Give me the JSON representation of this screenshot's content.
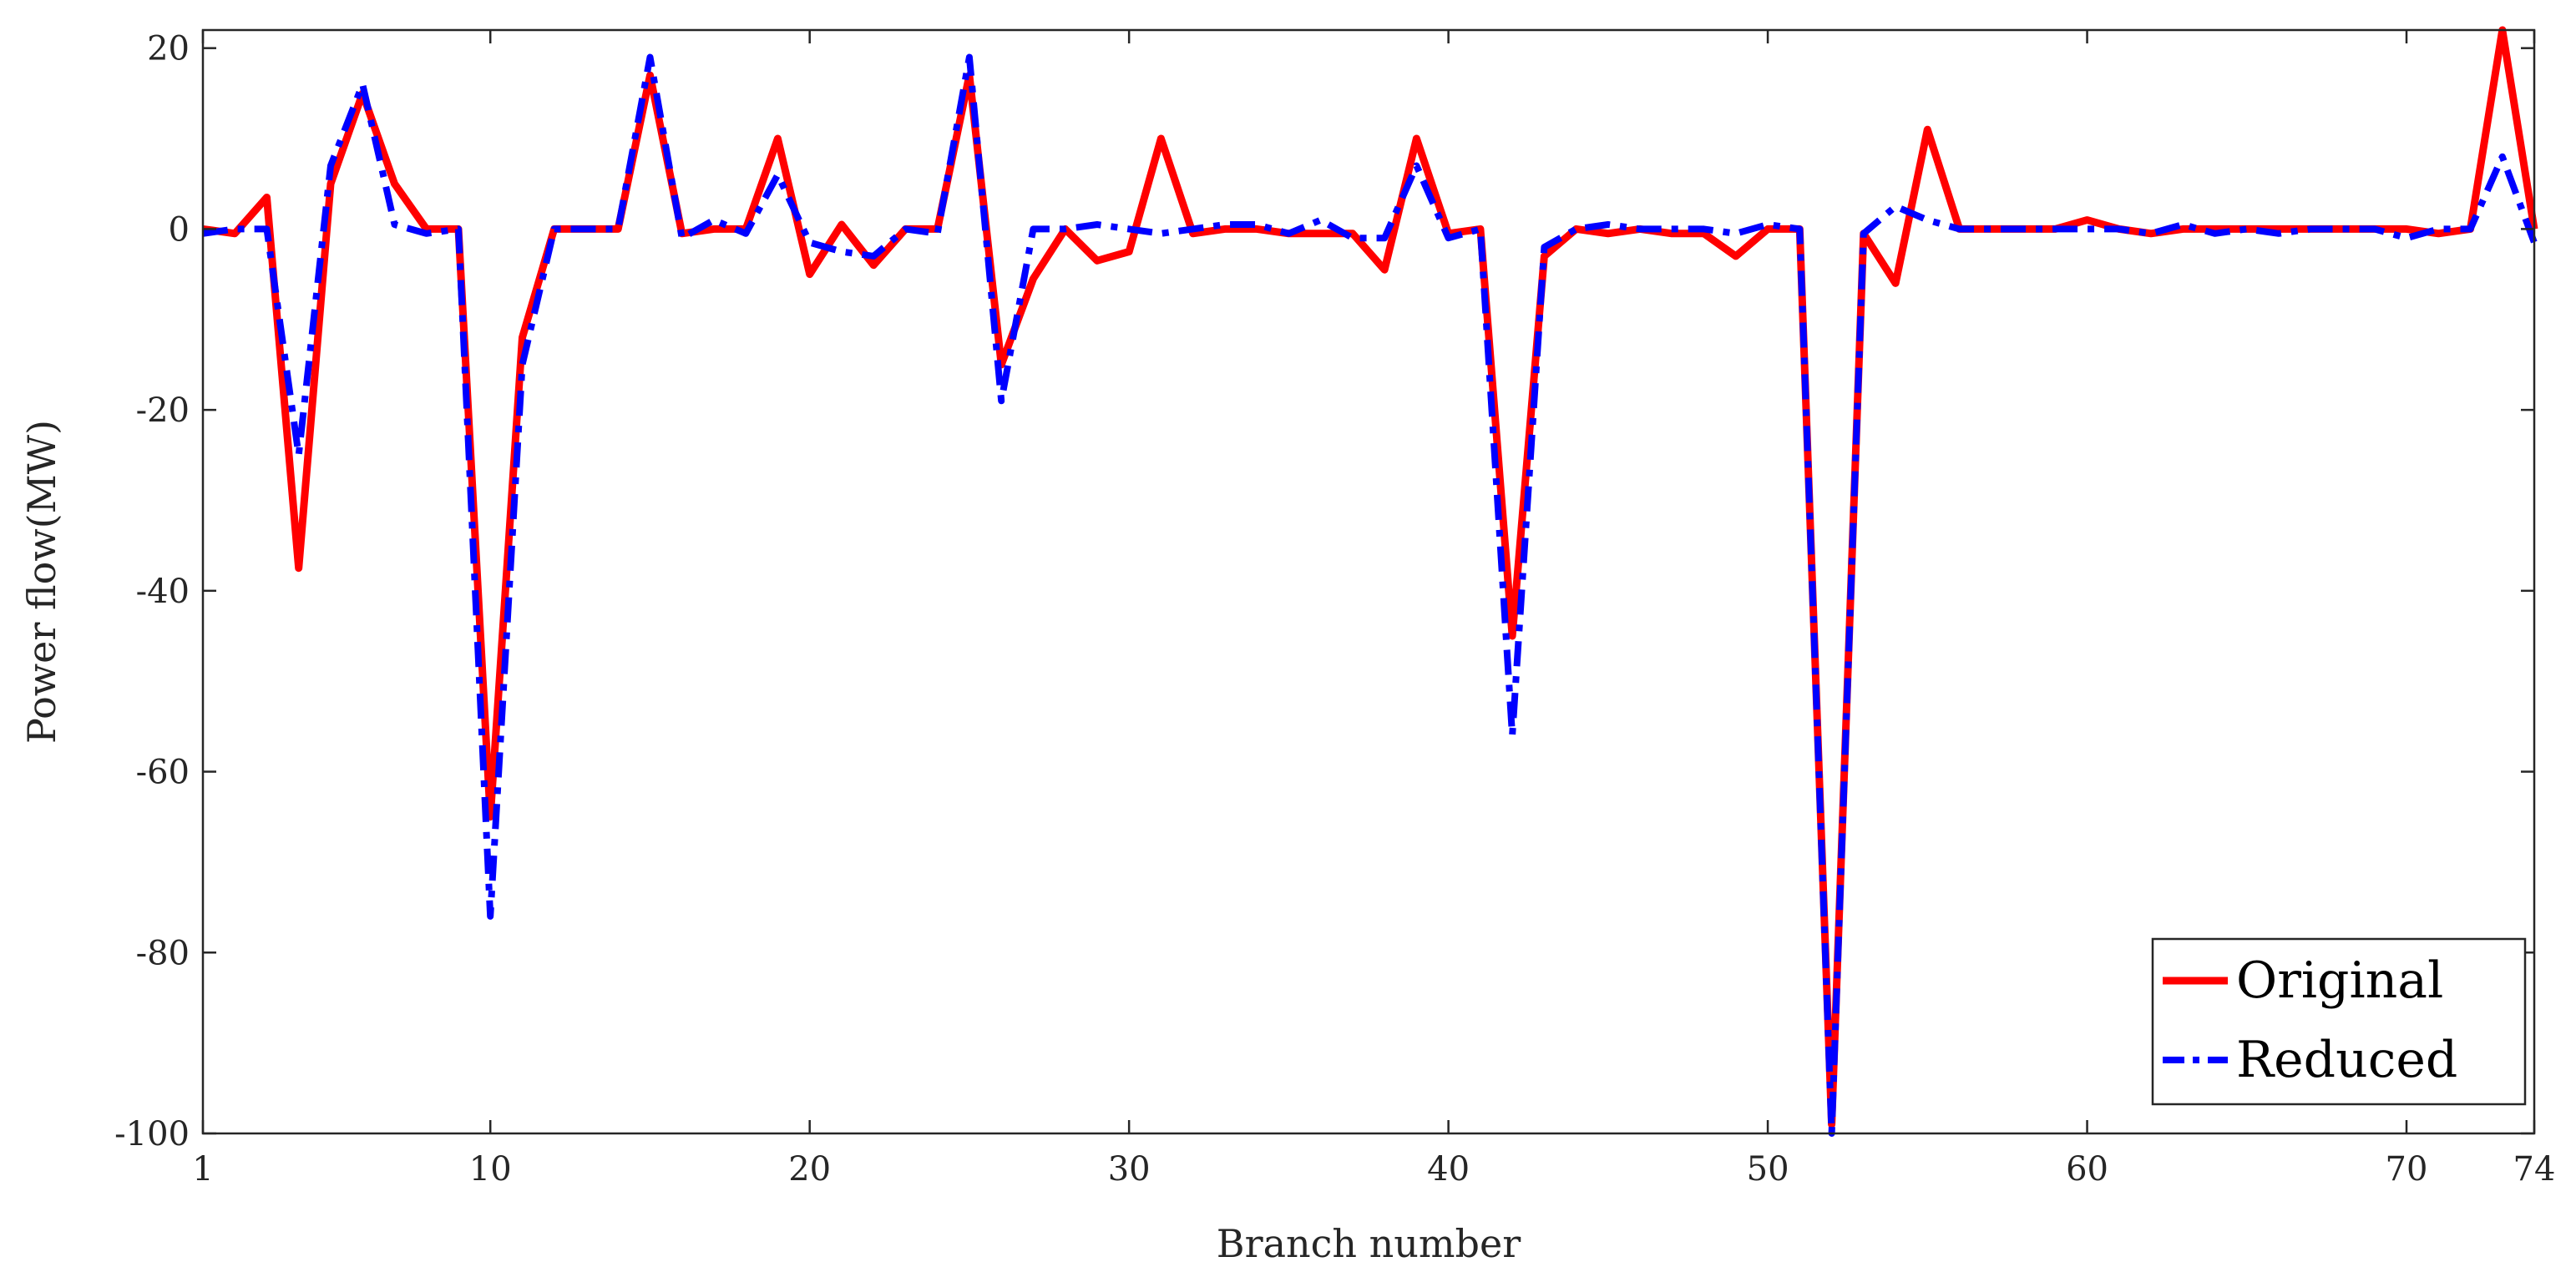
{
  "chart_data": {
    "type": "line",
    "title": "",
    "xlabel": "Branch number",
    "ylabel": "Power flow(MW)",
    "xlim": [
      1,
      74
    ],
    "ylim": [
      -100,
      22
    ],
    "xticks": [
      1,
      10,
      20,
      30,
      40,
      50,
      60,
      70,
      74
    ],
    "xtick_labels": [
      "1",
      "10",
      "20",
      "30",
      "40",
      "50",
      "60",
      "70",
      "74"
    ],
    "yticks": [
      -100,
      -80,
      -60,
      -40,
      -20,
      0,
      20
    ],
    "ytick_labels": [
      "-100",
      "-80",
      "-60",
      "-40",
      "-20",
      "0",
      "20"
    ],
    "grid": false,
    "legend_position": "bottom-right",
    "x": [
      1,
      2,
      3,
      4,
      5,
      6,
      7,
      8,
      9,
      10,
      11,
      12,
      13,
      14,
      15,
      16,
      17,
      18,
      19,
      20,
      21,
      22,
      23,
      24,
      25,
      26,
      27,
      28,
      29,
      30,
      31,
      32,
      33,
      34,
      35,
      36,
      37,
      38,
      39,
      40,
      41,
      42,
      43,
      44,
      45,
      46,
      47,
      48,
      49,
      50,
      51,
      52,
      53,
      54,
      55,
      56,
      57,
      58,
      59,
      60,
      61,
      62,
      63,
      64,
      65,
      66,
      67,
      68,
      69,
      70,
      71,
      72,
      73,
      74
    ],
    "series": [
      {
        "name": "Original",
        "color": "#ff0000",
        "style": "solid",
        "values": [
          0,
          -0.5,
          3.5,
          -37.5,
          5,
          15,
          5,
          0,
          0,
          -65,
          -12,
          0,
          0,
          0,
          17,
          -0.5,
          0,
          0,
          10,
          -5,
          0.5,
          -4,
          0,
          0,
          17,
          -15,
          -5.5,
          0,
          -3.5,
          -2.5,
          10,
          -0.5,
          0,
          0,
          -0.5,
          -0.5,
          -0.5,
          -4.5,
          10,
          -0.5,
          0,
          -45,
          -3,
          0,
          -0.5,
          0,
          -0.5,
          -0.5,
          -3,
          0,
          0,
          -99,
          -0.5,
          -6,
          11,
          0,
          0,
          0,
          0,
          1,
          0,
          -0.5,
          0,
          0,
          0,
          0,
          0,
          0,
          0,
          0,
          -0.5,
          0,
          22,
          0
        ]
      },
      {
        "name": "Reduced",
        "color": "#0000ff",
        "style": "dash-dot",
        "values": [
          -0.5,
          0,
          0,
          -25,
          7,
          16,
          0.5,
          -0.5,
          0,
          -76,
          -15,
          0,
          0,
          0,
          19,
          -1,
          1,
          -0.5,
          6,
          -1.5,
          -2.5,
          -3,
          0,
          -0.5,
          19,
          -19,
          0,
          0,
          0.5,
          0,
          -0.5,
          0,
          0.5,
          0.5,
          -0.5,
          1,
          -1,
          -1,
          7,
          -1,
          0,
          -56,
          -2,
          0,
          0.5,
          0,
          0,
          0,
          -0.5,
          0.5,
          0,
          -100,
          -0.5,
          2.5,
          1,
          0,
          0,
          0,
          0,
          0,
          0,
          -0.5,
          0.5,
          -0.5,
          0,
          -0.5,
          0,
          0,
          0,
          -1,
          0,
          0,
          8,
          -1.5
        ]
      }
    ]
  }
}
